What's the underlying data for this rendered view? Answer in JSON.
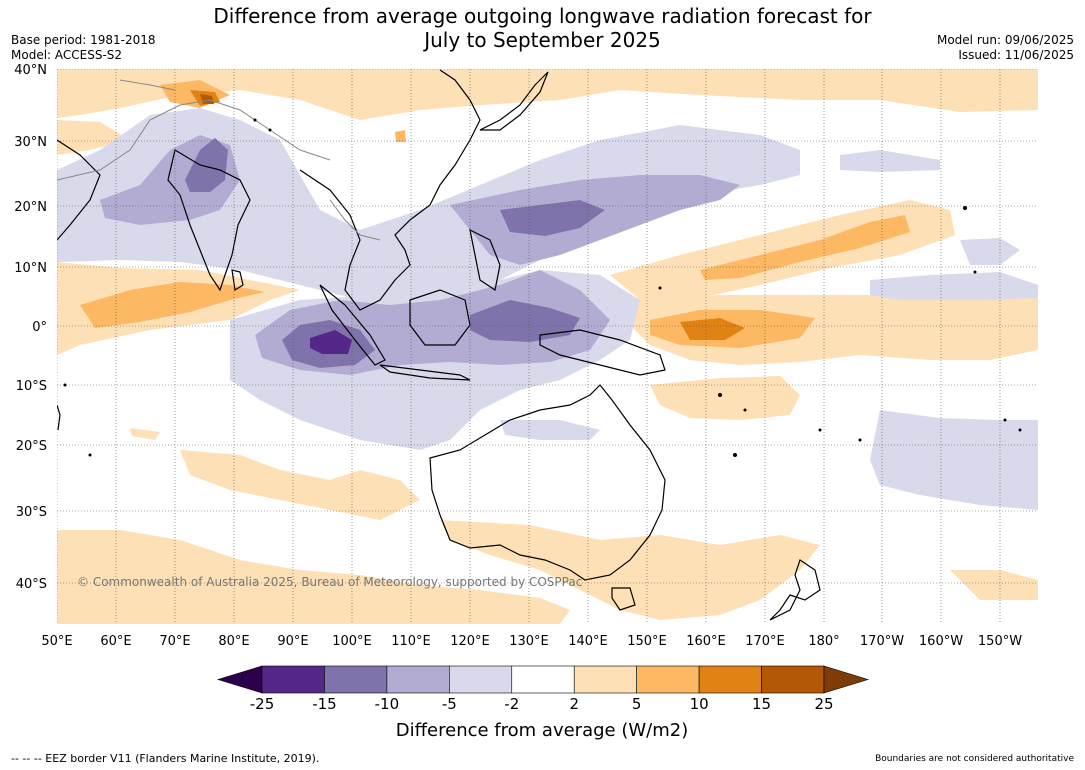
{
  "title_line1": "Difference from average outgoing longwave radiation forecast for",
  "title_line2": "July to September 2025",
  "meta_left": {
    "base_period": "Base period: 1981-2018",
    "model": "Model: ACCESS-S2"
  },
  "meta_right": {
    "model_run": "Model run: 09/06/2025",
    "issued": "Issued: 11/06/2025"
  },
  "map": {
    "lat_labels": [
      "40°N",
      "30°N",
      "20°N",
      "10°N",
      "0°",
      "10°S",
      "20°S",
      "30°S",
      "40°S"
    ],
    "lon_labels": [
      "50°E",
      "60°E",
      "70°E",
      "80°E",
      "90°E",
      "100°E",
      "110°E",
      "120°E",
      "130°E",
      "140°E",
      "150°E",
      "160°E",
      "170°E",
      "180°",
      "170°W",
      "160°W",
      "150°W"
    ],
    "copyright": "© Commonwealth of Australia 2025, Bureau of Meteorology, supported by COSPPac"
  },
  "colorbar": {
    "title": "Difference from average (W/m2)",
    "tick_labels": [
      "-25",
      "-15",
      "-10",
      "-5",
      "-2",
      "2",
      "5",
      "10",
      "15",
      "25"
    ],
    "colors": [
      "#2d004b",
      "#542788",
      "#8073ac",
      "#b2abd2",
      "#d8daeb",
      "#ffffff",
      "#fee0b6",
      "#fdb863",
      "#e08214",
      "#b35806",
      "#7f3b08"
    ]
  },
  "footer": {
    "legend_text": "-- -- -- EEZ border V11 (Flanders Marine Institute, 2019).",
    "disclaimer": "Boundaries are not considered authoritative"
  }
}
